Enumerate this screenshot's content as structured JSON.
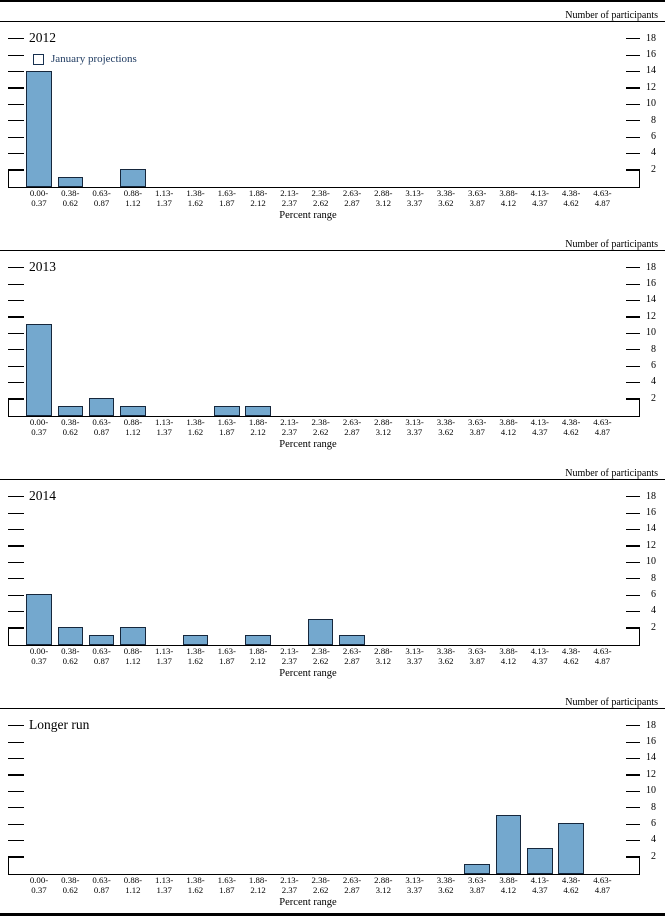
{
  "page": {
    "y_axis_label": "Number of participants",
    "x_axis_label": "Percent range",
    "legend_label": "January projections",
    "colors": {
      "bar_fill": "#74a8ce",
      "bar_border": "#16273c",
      "legend_text": "#1e3a60",
      "axis": "#000000"
    }
  },
  "chart_data": [
    {
      "type": "bar",
      "title": "2012",
      "legend": "January projections",
      "xlabel": "Percent range",
      "ylabel": "Number of participants",
      "ylim": [
        0,
        19
      ],
      "yticks": [
        2,
        4,
        6,
        8,
        10,
        12,
        14,
        16,
        18
      ],
      "grid": false,
      "legend_position": "top-left",
      "categories": [
        "0.00-0.37",
        "0.38-0.62",
        "0.63-0.87",
        "0.88-1.12",
        "1.13-1.37",
        "1.38-1.62",
        "1.63-1.87",
        "1.88-2.12",
        "2.13-2.37",
        "2.38-2.62",
        "2.63-2.87",
        "2.88-3.12",
        "3.13-3.37",
        "3.38-3.62",
        "3.63-3.87",
        "3.88-4.12",
        "4.13-4.37",
        "4.38-4.62",
        "4.63-4.87"
      ],
      "values": [
        14,
        1,
        0,
        2,
        0,
        0,
        0,
        0,
        0,
        0,
        0,
        0,
        0,
        0,
        0,
        0,
        0,
        0,
        0
      ]
    },
    {
      "type": "bar",
      "title": "2013",
      "xlabel": "Percent range",
      "ylabel": "Number of participants",
      "ylim": [
        0,
        19
      ],
      "yticks": [
        2,
        4,
        6,
        8,
        10,
        12,
        14,
        16,
        18
      ],
      "grid": false,
      "categories": [
        "0.00-0.37",
        "0.38-0.62",
        "0.63-0.87",
        "0.88-1.12",
        "1.13-1.37",
        "1.38-1.62",
        "1.63-1.87",
        "1.88-2.12",
        "2.13-2.37",
        "2.38-2.62",
        "2.63-2.87",
        "2.88-3.12",
        "3.13-3.37",
        "3.38-3.62",
        "3.63-3.87",
        "3.88-4.12",
        "4.13-4.37",
        "4.38-4.62",
        "4.63-4.87"
      ],
      "values": [
        11,
        1,
        2,
        1,
        0,
        0,
        1,
        1,
        0,
        0,
        0,
        0,
        0,
        0,
        0,
        0,
        0,
        0,
        0
      ]
    },
    {
      "type": "bar",
      "title": "2014",
      "xlabel": "Percent range",
      "ylabel": "Number of participants",
      "ylim": [
        0,
        19
      ],
      "yticks": [
        2,
        4,
        6,
        8,
        10,
        12,
        14,
        16,
        18
      ],
      "grid": false,
      "categories": [
        "0.00-0.37",
        "0.38-0.62",
        "0.63-0.87",
        "0.88-1.12",
        "1.13-1.37",
        "1.38-1.62",
        "1.63-1.87",
        "1.88-2.12",
        "2.13-2.37",
        "2.38-2.62",
        "2.63-2.87",
        "2.88-3.12",
        "3.13-3.37",
        "3.38-3.62",
        "3.63-3.87",
        "3.88-4.12",
        "4.13-4.37",
        "4.38-4.62",
        "4.63-4.87"
      ],
      "values": [
        6,
        2,
        1,
        2,
        0,
        1,
        0,
        1,
        0,
        3,
        1,
        0,
        0,
        0,
        0,
        0,
        0,
        0,
        0
      ]
    },
    {
      "type": "bar",
      "title": "Longer run",
      "xlabel": "Percent range",
      "ylabel": "Number of participants",
      "ylim": [
        0,
        19
      ],
      "yticks": [
        2,
        4,
        6,
        8,
        10,
        12,
        14,
        16,
        18
      ],
      "grid": false,
      "categories": [
        "0.00-0.37",
        "0.38-0.62",
        "0.63-0.87",
        "0.88-1.12",
        "1.13-1.37",
        "1.38-1.62",
        "1.63-1.87",
        "1.88-2.12",
        "2.13-2.37",
        "2.38-2.62",
        "2.63-2.87",
        "2.88-3.12",
        "3.13-3.37",
        "3.38-3.62",
        "3.63-3.87",
        "3.88-4.12",
        "4.13-4.37",
        "4.38-4.62",
        "4.63-4.87"
      ],
      "values": [
        0,
        0,
        0,
        0,
        0,
        0,
        0,
        0,
        0,
        0,
        0,
        0,
        0,
        0,
        1,
        7,
        3,
        6,
        0
      ]
    }
  ]
}
